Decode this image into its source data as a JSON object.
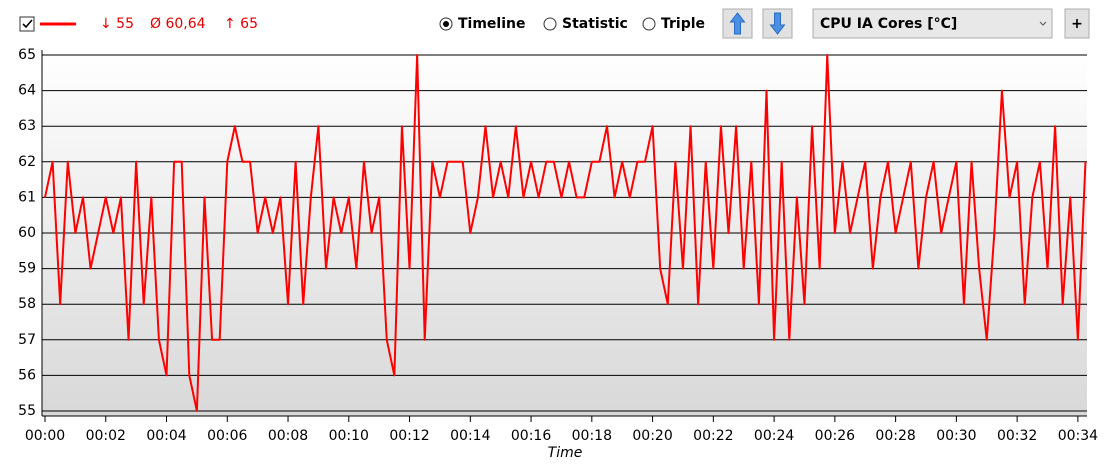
{
  "toolbar": {
    "min": "↓ 55",
    "avg": "Ø 60,64",
    "max": "↑ 65",
    "views": [
      "Timeline",
      "Statistic",
      "Triple"
    ],
    "sensor": "CPU IA Cores [°C]",
    "add": "+"
  },
  "chart_data": {
    "type": "line",
    "xlabel": "Time",
    "color": "#ff0000",
    "grid": true,
    "x": [
      0,
      0.25,
      0.5,
      0.75,
      1,
      1.25,
      1.5,
      1.75,
      2,
      2.25,
      2.5,
      2.75,
      3,
      3.25,
      3.5,
      3.75,
      4,
      4.25,
      4.5,
      4.75,
      5,
      5.25,
      5.5,
      5.75,
      6,
      6.25,
      6.5,
      6.75,
      7,
      7.25,
      7.5,
      7.75,
      8,
      8.25,
      8.5,
      8.75,
      9,
      9.25,
      9.5,
      9.75,
      10,
      10.25,
      10.5,
      10.75,
      11,
      11.25,
      11.5,
      11.75,
      12,
      12.25,
      12.5,
      12.75,
      13,
      13.25,
      13.5,
      13.75,
      14,
      14.25,
      14.5,
      14.75,
      15,
      15.25,
      15.5,
      15.75,
      16,
      16.25,
      16.5,
      16.75,
      17,
      17.25,
      17.5,
      17.75,
      18,
      18.25,
      18.5,
      18.75,
      19,
      19.25,
      19.5,
      19.75,
      20,
      20.25,
      20.5,
      20.75,
      21,
      21.25,
      21.5,
      21.75,
      22,
      22.25,
      22.5,
      22.75,
      23,
      23.25,
      23.5,
      23.75,
      24,
      24.25,
      24.5,
      24.75,
      25,
      25.25,
      25.5,
      25.75,
      26,
      26.25,
      26.5,
      26.75,
      27,
      27.25,
      27.5,
      27.75,
      28,
      28.25,
      28.5,
      28.75,
      29,
      29.25,
      29.5,
      29.75,
      30,
      30.25,
      30.5,
      30.75,
      31,
      31.25,
      31.5,
      31.75,
      32,
      32.25,
      32.5,
      32.75,
      33,
      33.25,
      33.5,
      33.75,
      34,
      34.25
    ],
    "values": [
      61,
      62,
      58,
      62,
      60,
      61,
      59,
      60,
      61,
      60,
      61,
      57,
      62,
      58,
      61,
      57,
      56,
      62,
      62,
      56,
      55,
      61,
      57,
      57,
      62,
      63,
      62,
      62,
      60,
      61,
      60,
      61,
      58,
      62,
      58,
      61,
      63,
      59,
      61,
      60,
      61,
      59,
      62,
      60,
      61,
      57,
      56,
      63,
      59,
      65,
      57,
      62,
      61,
      62,
      62,
      62,
      60,
      61,
      63,
      61,
      62,
      61,
      63,
      61,
      62,
      61,
      62,
      62,
      61,
      62,
      61,
      61,
      62,
      62,
      63,
      61,
      62,
      61,
      62,
      62,
      63,
      59,
      58,
      62,
      59,
      63,
      58,
      62,
      59,
      63,
      60,
      63,
      59,
      62,
      58,
      64,
      57,
      62,
      57,
      61,
      58,
      63,
      59,
      65,
      60,
      62,
      60,
      61,
      62,
      59,
      61,
      62,
      60,
      61,
      62,
      59,
      61,
      62,
      60,
      61,
      62,
      58,
      62,
      59,
      57,
      60,
      64,
      61,
      62,
      58,
      61,
      62,
      59,
      63,
      58,
      61,
      57,
      62
    ],
    "xlim": [
      0,
      34.3
    ],
    "ylim": [
      55,
      65
    ],
    "yticks": [
      55,
      56,
      57,
      58,
      59,
      60,
      61,
      62,
      63,
      64,
      65
    ],
    "xticks": [
      {
        "value": 0,
        "label": "00:00"
      },
      {
        "value": 2,
        "label": "00:02"
      },
      {
        "value": 4,
        "label": "00:04"
      },
      {
        "value": 6,
        "label": "00:06"
      },
      {
        "value": 8,
        "label": "00:08"
      },
      {
        "value": 10,
        "label": "00:10"
      },
      {
        "value": 12,
        "label": "00:12"
      },
      {
        "value": 14,
        "label": "00:14"
      },
      {
        "value": 16,
        "label": "00:16"
      },
      {
        "value": 18,
        "label": "00:18"
      },
      {
        "value": 20,
        "label": "00:20"
      },
      {
        "value": 22,
        "label": "00:22"
      },
      {
        "value": 24,
        "label": "00:24"
      },
      {
        "value": 26,
        "label": "00:26"
      },
      {
        "value": 28,
        "label": "00:28"
      },
      {
        "value": 30,
        "label": "00:30"
      },
      {
        "value": 32,
        "label": "00:32"
      },
      {
        "value": 34,
        "label": "00:34"
      }
    ]
  }
}
